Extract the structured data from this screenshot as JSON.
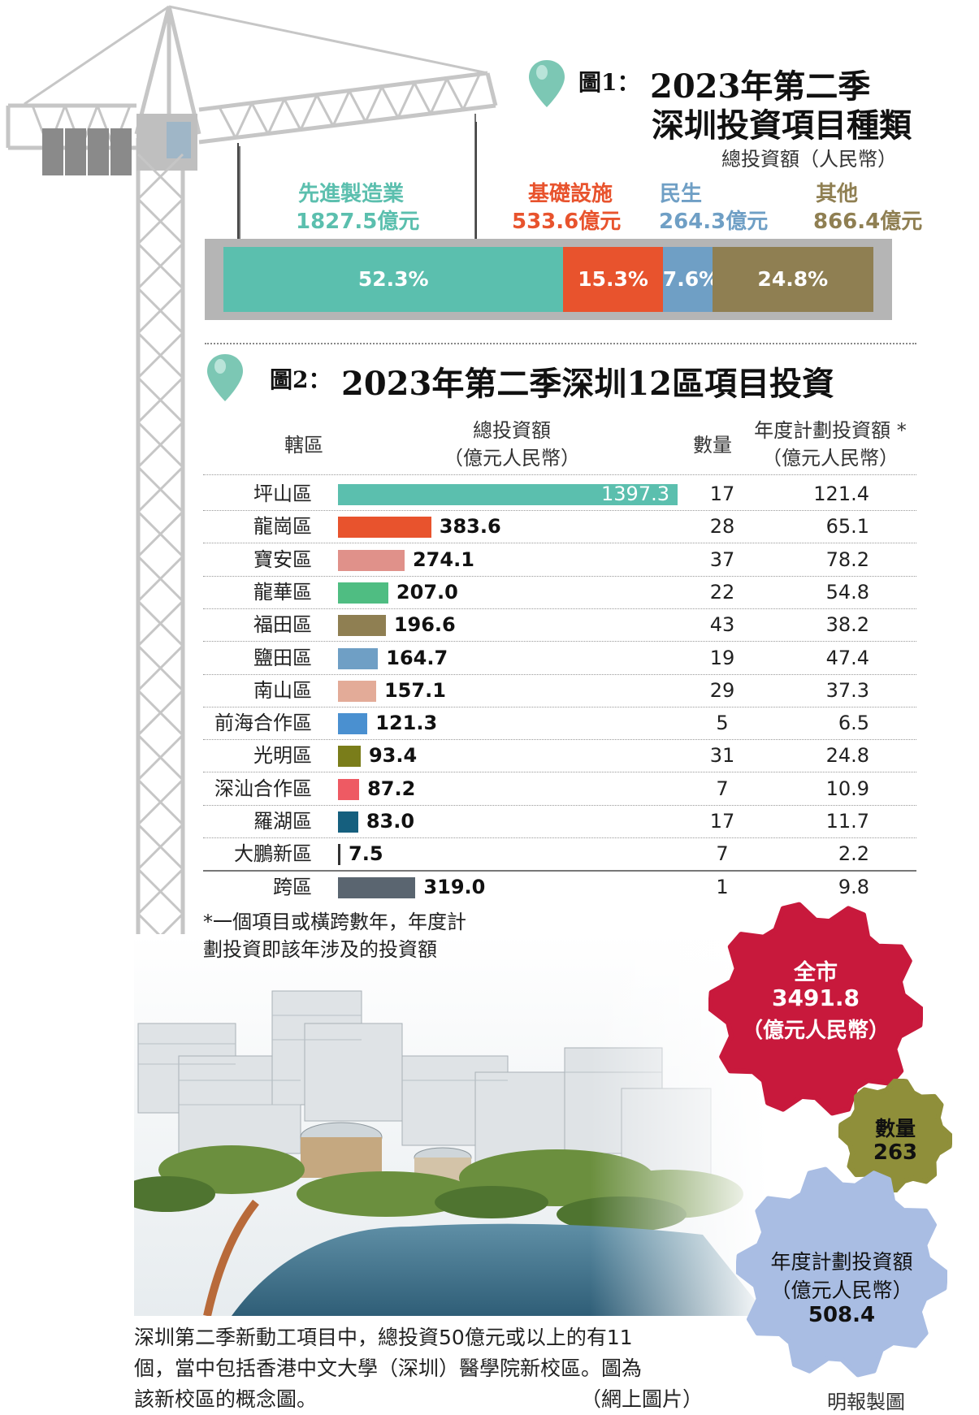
{
  "fig1": {
    "title_prefix": "圖1：",
    "title_line1": "2023年第二季",
    "title_line2": "深圳投資項目種類",
    "subtitle": "總投資額（人民幣）"
  },
  "fig2": {
    "title_prefix": "圖2：",
    "title": "2023年第二季深圳12區項目投資",
    "headers": {
      "district": "轄區",
      "total_line1": "總投資額",
      "total_line2": "（億元人民幣）",
      "count": "數量",
      "plan_line1": "年度計劃投資額 *",
      "plan_line2": "（億元人民幣）"
    }
  },
  "chart_data": [
    {
      "type": "bar",
      "orientation": "horizontal-stacked",
      "title": "2023年第二季 深圳投資項目種類",
      "subtitle": "總投資額（人民幣）",
      "series": [
        {
          "name": "先進製造業",
          "amount_label": "1827.5億元",
          "amount": 1827.5,
          "percent": 52.3,
          "percent_label": "52.3%",
          "color": "#5bbfae"
        },
        {
          "name": "基礎設施",
          "amount_label": "533.6億元",
          "amount": 533.6,
          "percent": 15.3,
          "percent_label": "15.3%",
          "color": "#e8532d"
        },
        {
          "name": "民生",
          "amount_label": "264.3億元",
          "amount": 264.3,
          "percent": 7.6,
          "percent_label": "7.6%",
          "color": "#6f9fc5"
        },
        {
          "name": "其他",
          "amount_label": "866.4億元",
          "amount": 866.4,
          "percent": 24.8,
          "percent_label": "24.8%",
          "color": "#8f7f52"
        }
      ]
    },
    {
      "type": "bar",
      "orientation": "horizontal",
      "title": "2023年第二季深圳12區項目投資",
      "categories": [
        "坪山區",
        "龍崗區",
        "寶安區",
        "龍華區",
        "福田區",
        "鹽田區",
        "南山區",
        "前海合作區",
        "光明區",
        "深汕合作區",
        "羅湖區",
        "大鵬新區",
        "跨區"
      ],
      "values": [
        1397.3,
        383.6,
        274.1,
        207.0,
        196.6,
        164.7,
        157.1,
        121.3,
        93.4,
        87.2,
        83.0,
        7.5,
        319.0
      ],
      "value_labels": [
        "1397.3",
        "383.6",
        "274.1",
        "207.0",
        "196.6",
        "164.7",
        "157.1",
        "121.3",
        "93.4",
        "87.2",
        "83.0",
        "7.5",
        "319.0"
      ],
      "counts": [
        "17",
        "28",
        "37",
        "22",
        "43",
        "19",
        "29",
        "5",
        "31",
        "7",
        "17",
        "7",
        "1"
      ],
      "annual_plan": [
        "121.4",
        "65.1",
        "78.2",
        "54.8",
        "38.2",
        "47.4",
        "37.3",
        "6.5",
        "24.8",
        "10.9",
        "11.7",
        "2.2",
        "9.8"
      ],
      "colors": [
        "#5bbfae",
        "#e8532d",
        "#e0918a",
        "#4fbd82",
        "#8f7f52",
        "#6f9fc5",
        "#e3ab98",
        "#4a90d0",
        "#7a7d1a",
        "#ee5a63",
        "#155f7e",
        "#333333",
        "#5a6570"
      ],
      "xlim": [
        0,
        1397.3
      ]
    }
  ],
  "note": {
    "line1": "*一個項目或橫跨數年，年度計",
    "line2": "劃投資即該年涉及的投資額"
  },
  "summary": {
    "city_label": "全市",
    "city_value": "3491.8",
    "city_unit": "（億元人民幣）",
    "count_label": "數量",
    "count_value": "263",
    "plan_label": "年度計劃投資額",
    "plan_unit": "（億元人民幣）",
    "plan_value": "508.4"
  },
  "caption": {
    "line1": "深圳第二季新動工項目中，總投資50億元或以上的有11",
    "line2": "個，當中包括香港中文大學（深圳）醫學院新校區。圖為",
    "line3": "該新校區的概念圖。",
    "credit": "（網上圖片）"
  },
  "byline": "明報製圖",
  "colors": {
    "crane": "#c9c9c9",
    "crane_dark": "#9a9a9a",
    "pin": "#7cc7b4",
    "gear_red": "#c8193c",
    "gear_olive": "#8f8f3a",
    "gear_blue": "#a9bde3"
  }
}
